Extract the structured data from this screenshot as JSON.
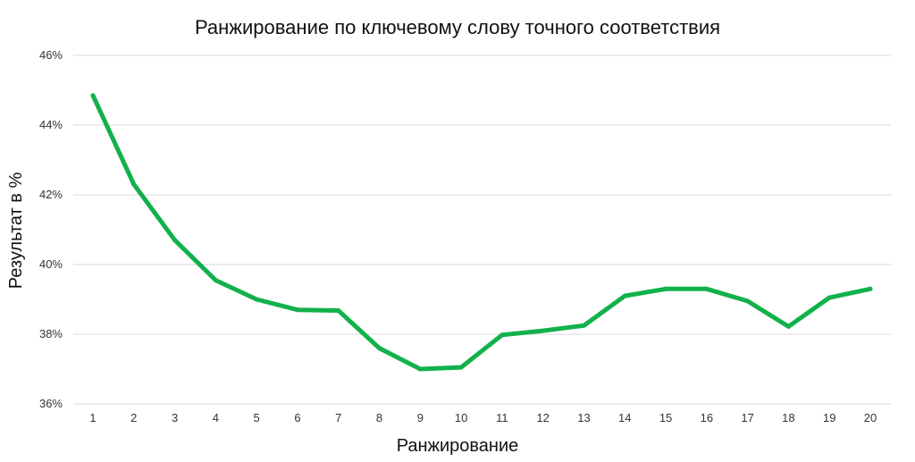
{
  "chart_data": {
    "type": "line",
    "title": "Ранжирование по ключевому слову точного соответствия",
    "xlabel": "Ранжирование",
    "ylabel": "Результат в %",
    "x": [
      1,
      2,
      3,
      4,
      5,
      6,
      7,
      8,
      9,
      10,
      11,
      12,
      13,
      14,
      15,
      16,
      17,
      18,
      19,
      20
    ],
    "x_tick_labels": [
      "1",
      "2",
      "3",
      "4",
      "5",
      "6",
      "7",
      "8",
      "9",
      "10",
      "11",
      "12",
      "13",
      "14",
      "15",
      "16",
      "17",
      "18",
      "19",
      "20"
    ],
    "series": [
      {
        "values": [
          44.85,
          42.3,
          40.7,
          39.55,
          39.0,
          38.7,
          38.68,
          37.6,
          37.0,
          37.05,
          37.98,
          38.1,
          38.25,
          39.1,
          39.3,
          39.3,
          38.95,
          38.22,
          39.05,
          39.3
        ],
        "color": "#12b14b"
      }
    ],
    "ylim": [
      36,
      46
    ],
    "y_ticks": [
      36,
      38,
      40,
      42,
      44,
      46
    ],
    "y_tick_labels": [
      "36%",
      "38%",
      "40%",
      "42%",
      "44%",
      "46%"
    ],
    "grid": true,
    "legend": "none"
  }
}
